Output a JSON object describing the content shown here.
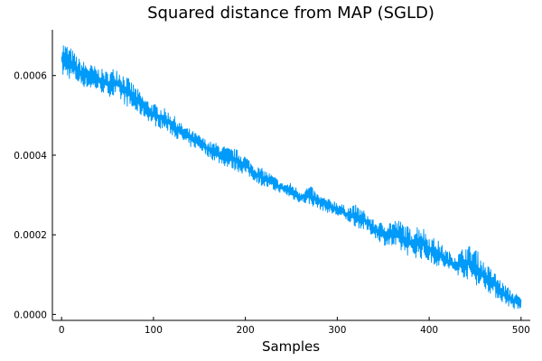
{
  "chart_data": {
    "type": "line",
    "title": "Squared distance from MAP (SGLD)",
    "xlabel": "Samples",
    "ylabel": "",
    "xlim": [
      -10,
      510
    ],
    "ylim": [
      -1.5e-05,
      0.000715
    ],
    "xticks": [
      0,
      100,
      200,
      300,
      400,
      500
    ],
    "xtick_labels": [
      "0",
      "100",
      "200",
      "300",
      "400",
      "500"
    ],
    "yticks": [
      0.0,
      0.0002,
      0.0004,
      0.0006
    ],
    "ytick_labels": [
      "0.0000",
      "0.0002",
      "0.0004",
      "0.0006"
    ],
    "grid": false,
    "legend": "none",
    "colors": {
      "series": "#009AF9"
    },
    "series": [
      {
        "x": [
          0,
          10,
          20,
          30,
          40,
          50,
          60,
          70,
          80,
          90,
          100,
          110,
          120,
          130,
          140,
          150,
          160,
          170,
          180,
          190,
          200,
          210,
          220,
          230,
          240,
          250,
          260,
          270,
          280,
          290,
          300,
          310,
          320,
          330,
          340,
          350,
          360,
          370,
          380,
          390,
          400,
          410,
          420,
          430,
          440,
          450,
          460,
          470,
          480,
          490,
          500
        ],
        "y_min": [
          0.000595,
          0.00059,
          0.000575,
          0.000565,
          0.00056,
          0.00055,
          0.00054,
          0.000525,
          0.000505,
          0.000495,
          0.000475,
          0.000465,
          0.00045,
          0.000435,
          0.00042,
          0.000415,
          0.000395,
          0.00038,
          0.00037,
          0.00036,
          0.00035,
          0.000335,
          0.00032,
          0.00031,
          0.000305,
          0.00029,
          0.00028,
          0.000275,
          0.000265,
          0.000255,
          0.000245,
          0.000235,
          0.00022,
          0.00021,
          0.000195,
          0.000175,
          0.000165,
          0.000155,
          0.000145,
          0.00014,
          0.00013,
          0.00012,
          0.00011,
          0.0001,
          9e-05,
          7.5e-05,
          6.5e-05,
          4.5e-05,
          3e-05,
          1.5e-05,
          5e-06
        ],
        "y_max": [
          0.00069,
          0.00067,
          0.00064,
          0.00063,
          0.00062,
          0.00061,
          0.000625,
          0.0006,
          0.000575,
          0.000545,
          0.00053,
          0.00052,
          0.000505,
          0.00048,
          0.000465,
          0.00045,
          0.000435,
          0.00043,
          0.00042,
          0.000415,
          0.0004,
          0.000375,
          0.000365,
          0.00035,
          0.00033,
          0.00033,
          0.00031,
          0.000325,
          0.0003,
          0.00029,
          0.000285,
          0.00027,
          0.000275,
          0.00026,
          0.000235,
          0.00023,
          0.00024,
          0.000235,
          0.000215,
          0.00023,
          0.0002,
          0.000185,
          0.00016,
          0.00015,
          0.000175,
          0.00017,
          0.00013,
          0.00011,
          8e-05,
          6e-05,
          4.5e-05
        ]
      }
    ]
  }
}
